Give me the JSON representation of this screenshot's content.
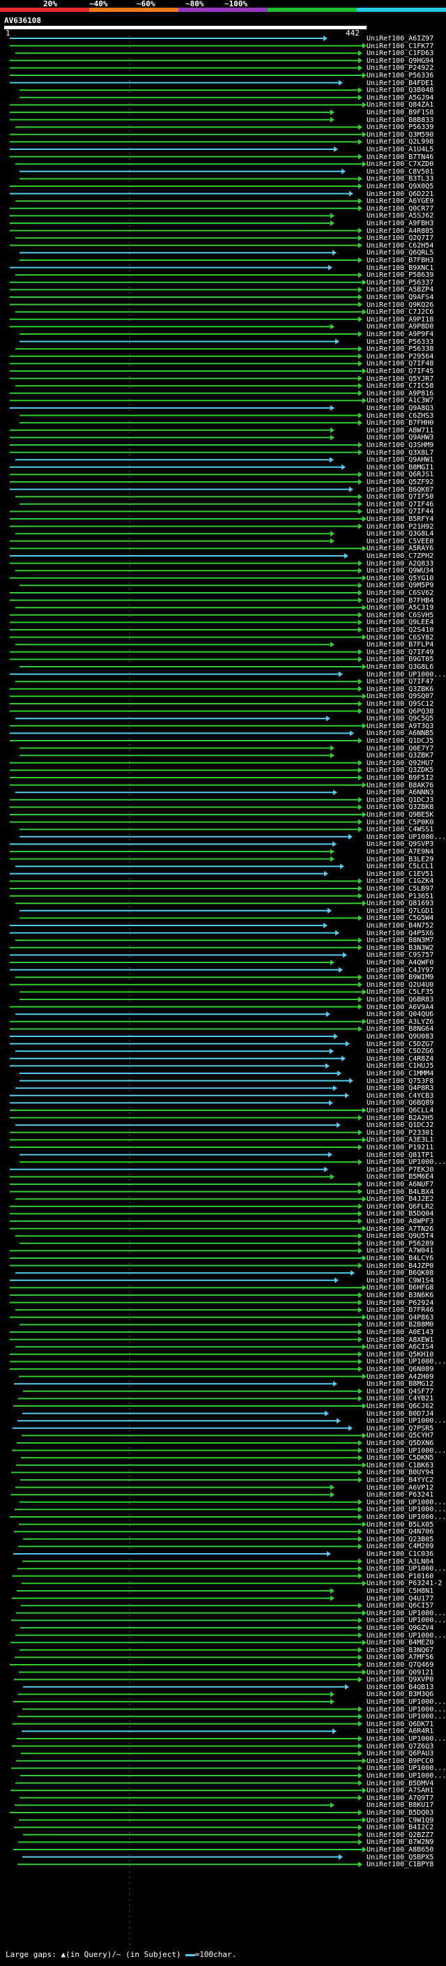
{
  "scale": {
    "labels": [
      "20%",
      "~40%",
      "~60%",
      "~80%",
      "~100%"
    ],
    "colors": [
      "#e8282a",
      "#f07d17",
      "#9b35c4",
      "#1fbd2c",
      "#22c9e0"
    ]
  },
  "query": {
    "id": "AV636108",
    "start": "1",
    "end": "442"
  },
  "hit_colors": {
    "cyan": "#55ccee",
    "green": "#33cc33"
  },
  "hits": [
    {
      "label": "UniRef100_A6IZ97",
      "color": "cyan"
    },
    {
      "label": "UniRef100_C1FK77",
      "color": "green"
    },
    {
      "label": "UniRef100_C1FD63",
      "color": "green"
    },
    {
      "label": "UniRef100_Q9HG94",
      "color": "green"
    },
    {
      "label": "UniRef100_P24922",
      "color": "green"
    },
    {
      "label": "UniRef100_P56336",
      "color": "green"
    },
    {
      "label": "UniRef100_B4FDE1",
      "color": "cyan"
    },
    {
      "label": "UniRef100_Q3B048",
      "color": "green"
    },
    {
      "label": "UniRef100_A5GJ94",
      "color": "green"
    },
    {
      "label": "UniRef100_Q84ZA1",
      "color": "green"
    },
    {
      "label": "UniRef100_B9F1S8",
      "color": "green"
    },
    {
      "label": "UniRef100_B8B833",
      "color": "green"
    },
    {
      "label": "UniRef100_P56339",
      "color": "green"
    },
    {
      "label": "UniRef100_Q3M590",
      "color": "green"
    },
    {
      "label": "UniRef100_Q2L998",
      "color": "green"
    },
    {
      "label": "UniRef100_A1U4L5",
      "color": "cyan"
    },
    {
      "label": "UniRef100_B7TN46",
      "color": "green"
    },
    {
      "label": "UniRef100_C7XZD0",
      "color": "green"
    },
    {
      "label": "UniRef100_C8V501",
      "color": "cyan"
    },
    {
      "label": "UniRef100_B3TL33",
      "color": "green"
    },
    {
      "label": "UniRef100_Q9X0Q5",
      "color": "green"
    },
    {
      "label": "UniRef100_Q6D221",
      "color": "cyan"
    },
    {
      "label": "UniRef100_A6YGE9",
      "color": "green"
    },
    {
      "label": "UniRef100_Q0CR77",
      "color": "green"
    },
    {
      "label": "UniRef100_A5SJ62",
      "color": "green"
    },
    {
      "label": "UniRef100_A9FBH3",
      "color": "green"
    },
    {
      "label": "UniRef100_A4R885",
      "color": "green"
    },
    {
      "label": "UniRef100_Q2Q7I7",
      "color": "green"
    },
    {
      "label": "UniRef100_C62H54",
      "color": "green"
    },
    {
      "label": "UniRef100_Q6QRL5",
      "color": "cyan"
    },
    {
      "label": "UniRef100_B7FBH3",
      "color": "green"
    },
    {
      "label": "UniRef100_B9XNC1",
      "color": "cyan"
    },
    {
      "label": "UniRef100_P58639",
      "color": "green"
    },
    {
      "label": "UniRef100_P56337",
      "color": "green"
    },
    {
      "label": "UniRef100_A5BZP4",
      "color": "green"
    },
    {
      "label": "UniRef100_Q9AFS4",
      "color": "green"
    },
    {
      "label": "UniRef100_Q9KQ26",
      "color": "green"
    },
    {
      "label": "UniRef100_C7J2C6",
      "color": "green"
    },
    {
      "label": "UniRef100_A9PI18",
      "color": "green"
    },
    {
      "label": "UniRef100_A9P8D0",
      "color": "green"
    },
    {
      "label": "UniRef100_A9P9F4",
      "color": "green"
    },
    {
      "label": "UniRef100_P56333",
      "color": "cyan"
    },
    {
      "label": "UniRef100_P56338",
      "color": "green"
    },
    {
      "label": "UniRef100_P29564",
      "color": "green"
    },
    {
      "label": "UniRef100_Q7IF48",
      "color": "green"
    },
    {
      "label": "UniRef100_Q7IF45",
      "color": "green"
    },
    {
      "label": "UniRef100_Q5YJR7",
      "color": "green"
    },
    {
      "label": "UniRef100_C7IC58",
      "color": "green"
    },
    {
      "label": "UniRef100_A9P816",
      "color": "green"
    },
    {
      "label": "UniRef100_A1C3W7",
      "color": "green"
    },
    {
      "label": "UniRef100_Q9A8Q3",
      "color": "cyan"
    },
    {
      "label": "UniRef100_C6ZHS3",
      "color": "green"
    },
    {
      "label": "UniRef100_B7FHH0",
      "color": "green"
    },
    {
      "label": "UniRef100_A8W711",
      "color": "green"
    },
    {
      "label": "UniRef100_Q9AHW3",
      "color": "green"
    },
    {
      "label": "UniRef100_Q3SHM9",
      "color": "green"
    },
    {
      "label": "UniRef100_Q3X8L7",
      "color": "green"
    },
    {
      "label": "UniRef100_Q9AHW1",
      "color": "cyan"
    },
    {
      "label": "UniRef100_B8MGI1",
      "color": "cyan"
    },
    {
      "label": "UniRef100_Q6RJS1",
      "color": "green"
    },
    {
      "label": "UniRef100_Q5ZF92",
      "color": "green"
    },
    {
      "label": "UniRef100_B6QK07",
      "color": "cyan"
    },
    {
      "label": "UniRef100_Q7IF50",
      "color": "green"
    },
    {
      "label": "UniRef100_Q7IF46",
      "color": "green"
    },
    {
      "label": "UniRef100_Q7IF44",
      "color": "green"
    },
    {
      "label": "UniRef100_B5RFY4",
      "color": "green"
    },
    {
      "label": "UniRef100_P21H92",
      "color": "green"
    },
    {
      "label": "UniRef100_Q3G8L4",
      "color": "green"
    },
    {
      "label": "UniRef100_C5VEE0",
      "color": "green"
    },
    {
      "label": "UniRef100_A5RAY6",
      "color": "green"
    },
    {
      "label": "UniRef100_C7ZPH2",
      "color": "cyan"
    },
    {
      "label": "UniRef100_A2Q833",
      "color": "green"
    },
    {
      "label": "UniRef100_Q9WU34",
      "color": "green"
    },
    {
      "label": "UniRef100_Q5YG10",
      "color": "green"
    },
    {
      "label": "UniRef100_Q9M5P9",
      "color": "green"
    },
    {
      "label": "UniRef100_C6SV62",
      "color": "green"
    },
    {
      "label": "UniRef100_B7FHB4",
      "color": "green"
    },
    {
      "label": "UniRef100_A5C319",
      "color": "green"
    },
    {
      "label": "UniRef100_C6SVH5",
      "color": "green"
    },
    {
      "label": "UniRef100_Q9LEE4",
      "color": "green"
    },
    {
      "label": "UniRef100_Q2S410",
      "color": "green"
    },
    {
      "label": "UniRef100_C6SY82",
      "color": "green"
    },
    {
      "label": "UniRef100_B7FLP4",
      "color": "green"
    },
    {
      "label": "UniRef100_Q7IF49",
      "color": "green"
    },
    {
      "label": "UniRef100_B9GT05",
      "color": "green"
    },
    {
      "label": "UniRef100_Q3G8L6",
      "color": "green"
    },
    {
      "label": "UniRef100_UP1000...",
      "color": "cyan"
    },
    {
      "label": "UniRef100_Q7IF47",
      "color": "green"
    },
    {
      "label": "UniRef100_Q3ZBK6",
      "color": "green"
    },
    {
      "label": "UniRef100_Q9SQ07",
      "color": "green"
    },
    {
      "label": "UniRef100_Q9SC12",
      "color": "green"
    },
    {
      "label": "UniRef100_Q6PQ38",
      "color": "green"
    },
    {
      "label": "UniRef100_Q9C5Q5",
      "color": "cyan"
    },
    {
      "label": "UniRef100_A9T3Q3",
      "color": "green"
    },
    {
      "label": "UniRef100_A6NNB5",
      "color": "cyan"
    },
    {
      "label": "UniRef100_Q1DCJ5",
      "color": "green"
    },
    {
      "label": "UniRef100_Q0E7Y7",
      "color": "green"
    },
    {
      "label": "UniRef100_Q3ZBK7",
      "color": "green"
    },
    {
      "label": "UniRef100_Q92HU7",
      "color": "green"
    },
    {
      "label": "UniRef100_Q3ZDK5",
      "color": "green"
    },
    {
      "label": "UniRef100_B9F5I2",
      "color": "green"
    },
    {
      "label": "UniRef100_B8AK76",
      "color": "green"
    },
    {
      "label": "UniRef100_A6NNN3",
      "color": "cyan"
    },
    {
      "label": "UniRef100_Q1DCJ3",
      "color": "green"
    },
    {
      "label": "UniRef100_Q3ZBK8",
      "color": "green"
    },
    {
      "label": "UniRef100_Q9BE5K",
      "color": "green"
    },
    {
      "label": "UniRef100_C5P0K0",
      "color": "green"
    },
    {
      "label": "UniRef100_C4WSS1",
      "color": "green"
    },
    {
      "label": "UniRef100_UP1000...",
      "color": "cyan"
    },
    {
      "label": "UniRef100_Q9SVP3",
      "color": "cyan"
    },
    {
      "label": "UniRef100_A7E9N4",
      "color": "green"
    },
    {
      "label": "UniRef100_B3LE29",
      "color": "green"
    },
    {
      "label": "UniRef100_C5LCL1",
      "color": "cyan"
    },
    {
      "label": "UniRef100_C1EV51",
      "color": "cyan"
    },
    {
      "label": "UniRef100_C1GZK4",
      "color": "green"
    },
    {
      "label": "UniRef100_C5LB97",
      "color": "green"
    },
    {
      "label": "UniRef100_P13651",
      "color": "green"
    },
    {
      "label": "UniRef100_Q81693",
      "color": "green"
    },
    {
      "label": "UniRef100_Q7LGD1",
      "color": "cyan"
    },
    {
      "label": "UniRef100_C5G5W4",
      "color": "green"
    },
    {
      "label": "UniRef100_B4N752",
      "color": "cyan"
    },
    {
      "label": "UniRef100_Q4P5X6",
      "color": "cyan"
    },
    {
      "label": "UniRef100_B8N3M7",
      "color": "green"
    },
    {
      "label": "UniRef100_B3N3W2",
      "color": "green"
    },
    {
      "label": "UniRef100_C9S757",
      "color": "cyan"
    },
    {
      "label": "UniRef100_A4QWF0",
      "color": "green"
    },
    {
      "label": "UniRef100_C4JY97",
      "color": "cyan"
    },
    {
      "label": "UniRef100_B9WIM9",
      "color": "green"
    },
    {
      "label": "UniRef100_Q2U4U0",
      "color": "green"
    },
    {
      "label": "UniRef100_C5LF35",
      "color": "green"
    },
    {
      "label": "UniRef100_Q6BR83",
      "color": "green"
    },
    {
      "label": "UniRef100_A6V9A4",
      "color": "green"
    },
    {
      "label": "UniRef100_Q04QU6",
      "color": "cyan"
    },
    {
      "label": "UniRef100_A3LYZ6",
      "color": "green"
    },
    {
      "label": "UniRef100_B8NG64",
      "color": "green"
    },
    {
      "label": "UniRef100_Q9U083",
      "color": "cyan"
    },
    {
      "label": "UniRef100_C5DZG7",
      "color": "cyan"
    },
    {
      "label": "UniRef100_C5DZG6",
      "color": "cyan"
    },
    {
      "label": "UniRef100_C4R8Z4",
      "color": "cyan"
    },
    {
      "label": "UniRef100_C1HUJ5",
      "color": "cyan"
    },
    {
      "label": "UniRef100_C1MMM4",
      "color": "cyan"
    },
    {
      "label": "UniRef100_Q753F8",
      "color": "cyan"
    },
    {
      "label": "UniRef100_Q4P8R3",
      "color": "cyan"
    },
    {
      "label": "UniRef100_C4YCB3",
      "color": "cyan"
    },
    {
      "label": "UniRef100_Q6BQ89",
      "color": "cyan"
    },
    {
      "label": "UniRef100_Q6CLL4",
      "color": "green"
    },
    {
      "label": "UniRef100_B2A2H5",
      "color": "green"
    },
    {
      "label": "UniRef100_Q1DCJ2",
      "color": "cyan"
    },
    {
      "label": "UniRef100_P23301",
      "color": "green"
    },
    {
      "label": "UniRef100_A3E3L1",
      "color": "green"
    },
    {
      "label": "UniRef100_P19211",
      "color": "green"
    },
    {
      "label": "UniRef100_Q81TP1",
      "color": "cyan"
    },
    {
      "label": "UniRef100_UP1000...",
      "color": "green"
    },
    {
      "label": "UniRef100_P7EKJ0",
      "color": "cyan"
    },
    {
      "label": "UniRef100_B5M6E4",
      "color": "green"
    },
    {
      "label": "UniRef100_A6NUF7",
      "color": "green"
    },
    {
      "label": "UniRef100_B4LBX4",
      "color": "green"
    },
    {
      "label": "UniRef100_B4J2E2",
      "color": "green"
    },
    {
      "label": "UniRef100_Q6FLR2",
      "color": "green"
    },
    {
      "label": "UniRef100_B5DQ04",
      "color": "green"
    },
    {
      "label": "UniRef100_A8WPF3",
      "color": "green"
    },
    {
      "label": "UniRef100_A7TN26",
      "color": "green"
    },
    {
      "label": "UniRef100_Q9U5T4",
      "color": "green"
    },
    {
      "label": "UniRef100_P56289",
      "color": "green"
    },
    {
      "label": "UniRef100_A7W041",
      "color": "green"
    },
    {
      "label": "UniRef100_B4LCY6",
      "color": "green"
    },
    {
      "label": "UniRef100_B4JZP0",
      "color": "green"
    },
    {
      "label": "UniRef100_B6QK08",
      "color": "cyan"
    },
    {
      "label": "UniRef100_C9W1S4",
      "color": "cyan"
    },
    {
      "label": "UniRef100_B6HFG8",
      "color": "green"
    },
    {
      "label": "UniRef100_B3N6K6",
      "color": "green"
    },
    {
      "label": "UniRef100_P62924",
      "color": "green"
    },
    {
      "label": "UniRef100_B7FR46",
      "color": "green"
    },
    {
      "label": "UniRef100_Q4P863",
      "color": "green"
    },
    {
      "label": "UniRef100_B2B8M0",
      "color": "green"
    },
    {
      "label": "UniRef100_A0E143",
      "color": "green"
    },
    {
      "label": "UniRef100_A8XEW1",
      "color": "green"
    },
    {
      "label": "UniRef100_A6CIS4",
      "color": "green"
    },
    {
      "label": "UniRef100_Q5KH10",
      "color": "green"
    },
    {
      "label": "UniRef100_UP1000...",
      "color": "green"
    },
    {
      "label": "UniRef100_Q6N089",
      "color": "green"
    },
    {
      "label": "UniRef100_A4ZH09",
      "color": "green"
    },
    {
      "label": "UniRef100_B8MG12",
      "color": "cyan"
    },
    {
      "label": "UniRef100_Q4SF77",
      "color": "green"
    },
    {
      "label": "UniRef100_C4YB21",
      "color": "green"
    },
    {
      "label": "UniRef100_Q6CJ62",
      "color": "green"
    },
    {
      "label": "UniRef100_B0D7J4",
      "color": "cyan"
    },
    {
      "label": "UniRef100_UP1000...",
      "color": "cyan"
    },
    {
      "label": "UniRef100_Q7PSR5",
      "color": "cyan"
    },
    {
      "label": "UniRef100_Q5CYH7",
      "color": "green"
    },
    {
      "label": "UniRef100_Q5DXN6",
      "color": "green"
    },
    {
      "label": "UniRef100_UP1000...",
      "color": "green"
    },
    {
      "label": "UniRef100_C5DKN5",
      "color": "green"
    },
    {
      "label": "UniRef100_C1BK63",
      "color": "green"
    },
    {
      "label": "UniRef100_B0UY94",
      "color": "green"
    },
    {
      "label": "UniRef100_B4YYC2",
      "color": "green"
    },
    {
      "label": "UniRef100_A6VP12",
      "color": "green"
    },
    {
      "label": "UniRef100_P63241",
      "color": "green"
    },
    {
      "label": "UniRef100_UP1000...",
      "color": "green"
    },
    {
      "label": "UniRef100_UP1000...",
      "color": "green"
    },
    {
      "label": "UniRef100_UP1000...",
      "color": "green"
    },
    {
      "label": "UniRef100_B5LX05",
      "color": "green"
    },
    {
      "label": "UniRef100_Q4N706",
      "color": "green"
    },
    {
      "label": "UniRef100_Q23B05",
      "color": "green"
    },
    {
      "label": "UniRef100_C4M209",
      "color": "green"
    },
    {
      "label": "UniRef100_C1C036",
      "color": "cyan"
    },
    {
      "label": "UniRef100_A3LN04",
      "color": "green"
    },
    {
      "label": "UniRef100_UP1000...",
      "color": "green"
    },
    {
      "label": "UniRef100_P10160",
      "color": "green"
    },
    {
      "label": "UniRef100_P63241-2",
      "color": "green"
    },
    {
      "label": "UniRef100_C5H8N1",
      "color": "green"
    },
    {
      "label": "UniRef100_Q4U177",
      "color": "green"
    },
    {
      "label": "UniRef100_Q6CI57",
      "color": "green"
    },
    {
      "label": "UniRef100_UP1000...",
      "color": "green"
    },
    {
      "label": "UniRef100_UP1000...",
      "color": "green"
    },
    {
      "label": "UniRef100_Q9GZV4",
      "color": "green"
    },
    {
      "label": "UniRef100_UP1000...",
      "color": "green"
    },
    {
      "label": "UniRef100_B4MEZ0",
      "color": "green"
    },
    {
      "label": "UniRef100_B3NQ67",
      "color": "green"
    },
    {
      "label": "UniRef100_A7MF56",
      "color": "green"
    },
    {
      "label": "UniRef100_Q7Q469",
      "color": "green"
    },
    {
      "label": "UniRef100_Q09121",
      "color": "green"
    },
    {
      "label": "UniRef100_Q9XVP0",
      "color": "green"
    },
    {
      "label": "UniRef100_B4QB13",
      "color": "cyan"
    },
    {
      "label": "UniRef100_B3M3Q6",
      "color": "green"
    },
    {
      "label": "UniRef100_UP1000...",
      "color": "green"
    },
    {
      "label": "UniRef100_UP1000...",
      "color": "green"
    },
    {
      "label": "UniRef100_UP1000...",
      "color": "green"
    },
    {
      "label": "UniRef100_Q6DK71",
      "color": "green"
    },
    {
      "label": "UniRef100_A6R4R1",
      "color": "cyan"
    },
    {
      "label": "UniRef100_UP1000...",
      "color": "green"
    },
    {
      "label": "UniRef100_Q7Z6Q3",
      "color": "green"
    },
    {
      "label": "UniRef100_Q6PAU3",
      "color": "green"
    },
    {
      "label": "UniRef100_B9PCC0",
      "color": "green"
    },
    {
      "label": "UniRef100_UP1000...",
      "color": "green"
    },
    {
      "label": "UniRef100_UP1000...",
      "color": "green"
    },
    {
      "label": "UniRef100_B5DMV4",
      "color": "green"
    },
    {
      "label": "UniRef100_A7SAH1",
      "color": "green"
    },
    {
      "label": "UniRef100_A7Q9T7",
      "color": "green"
    },
    {
      "label": "UniRef100_B8KU17",
      "color": "green"
    },
    {
      "label": "UniRef100_B5DQ03",
      "color": "green"
    },
    {
      "label": "UniRef100_C9W1Q9",
      "color": "green"
    },
    {
      "label": "UniRef100_B4I2C2",
      "color": "green"
    },
    {
      "label": "UniRef100_Q2BZZ7",
      "color": "green"
    },
    {
      "label": "UniRef100_B7W2N9",
      "color": "green"
    },
    {
      "label": "UniRef100_A8B650",
      "color": "green"
    },
    {
      "label": "UniRef100_Q5BPX5",
      "color": "cyan"
    },
    {
      "label": "UniRef100_C1BPY8",
      "color": "green"
    }
  ],
  "footer": {
    "text": "Large gaps: ▲(in Query)/~ (in Subject)",
    "scale_text": "=100char."
  }
}
